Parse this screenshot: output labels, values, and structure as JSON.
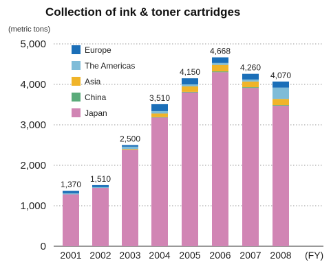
{
  "chart_data": {
    "type": "bar",
    "stacked": true,
    "title": "Collection of ink & toner cartridges",
    "ylabel": "(metric tons)",
    "xlabel": "(FY)",
    "ylim": [
      0,
      5000
    ],
    "yticks": [
      0,
      1000,
      2000,
      3000,
      4000,
      5000
    ],
    "ytick_labels": [
      "0",
      "1,000",
      "2,000",
      "3,000",
      "4,000",
      "5,000"
    ],
    "grid": true,
    "legend_position": "top-left",
    "categories": [
      "2001",
      "2002",
      "2003",
      "2004",
      "2005",
      "2006",
      "2007",
      "2008"
    ],
    "totals": [
      1370,
      1510,
      2500,
      3510,
      4150,
      4668,
      4260,
      4070
    ],
    "total_labels": [
      "1,370",
      "1,510",
      "2,500",
      "3,510",
      "4,150",
      "4,668",
      "4,260",
      "4,070"
    ],
    "series": [
      {
        "name": "Japan",
        "color": "#d185b4",
        "values": [
          1280,
          1440,
          2380,
          3180,
          3800,
          4300,
          3910,
          3470
        ]
      },
      {
        "name": "China",
        "color": "#5aab7a",
        "values": [
          0,
          0,
          0,
          10,
          15,
          20,
          20,
          20
        ]
      },
      {
        "name": "Asia",
        "color": "#f0b429",
        "values": [
          0,
          0,
          20,
          90,
          135,
          160,
          140,
          150
        ]
      },
      {
        "name": "The Americas",
        "color": "#7fbcd8",
        "values": [
          30,
          20,
          60,
          60,
          50,
          48,
          50,
          280
        ]
      },
      {
        "name": "Europe",
        "color": "#1b6fb8",
        "values": [
          60,
          50,
          40,
          170,
          150,
          140,
          140,
          150
        ]
      }
    ],
    "legend_order": [
      "Europe",
      "The Americas",
      "Asia",
      "China",
      "Japan"
    ]
  }
}
